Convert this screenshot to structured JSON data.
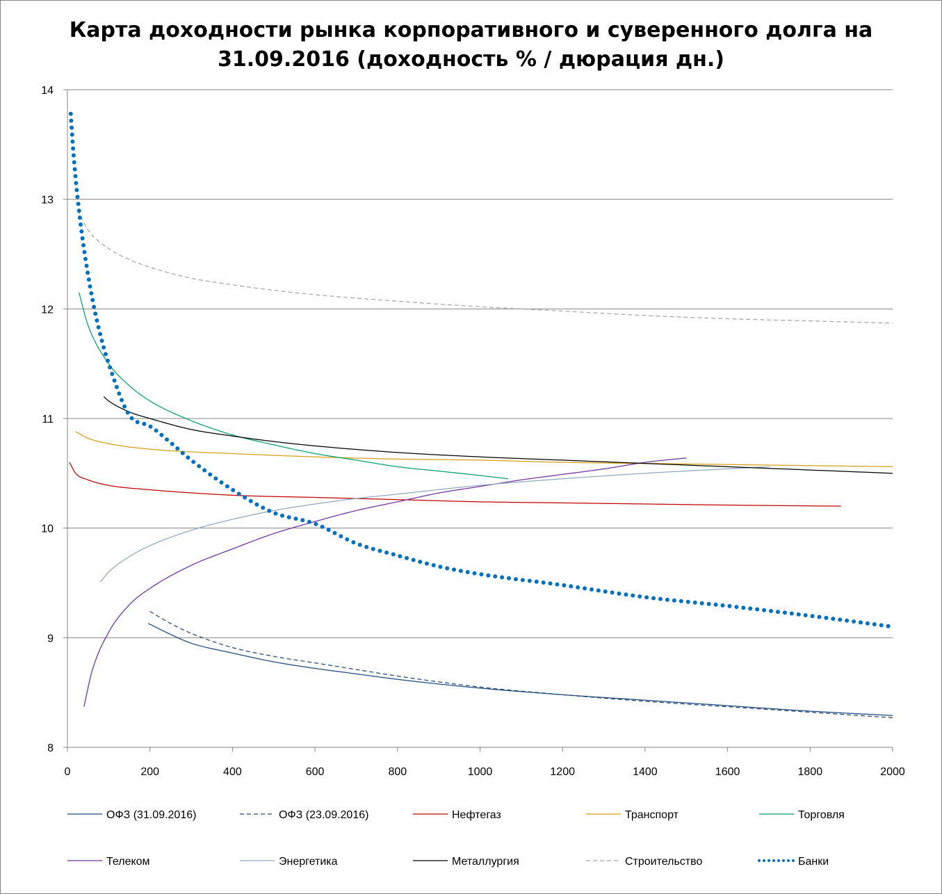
{
  "chart_data": {
    "type": "line",
    "title_line1": "Карта доходности рынка корпоративного и суверенного долга на",
    "title_line2": "31.09.2016 (доходность % / дюрация дн.)",
    "xlabel": "",
    "ylabel": "",
    "xlim": [
      0,
      2000
    ],
    "ylim": [
      8,
      14
    ],
    "x_ticks": [
      "0",
      "200",
      "400",
      "600",
      "800",
      "1000",
      "1200",
      "1400",
      "1600",
      "1800",
      "2000"
    ],
    "y_ticks": [
      "8",
      "9",
      "10",
      "11",
      "12",
      "13",
      "14"
    ],
    "grid": "horizontal",
    "legend_position": "bottom",
    "series": [
      {
        "name": "ОФЗ (31.09.2016)",
        "color": "#1F497D",
        "dash": "solid",
        "x": [
          196,
          250,
          300,
          400,
          500,
          600,
          700,
          800,
          1000,
          1200,
          1400,
          1600,
          1800,
          2000
        ],
        "y": [
          9.13,
          9.03,
          8.95,
          8.86,
          8.78,
          8.72,
          8.67,
          8.62,
          8.54,
          8.48,
          8.43,
          8.38,
          8.33,
          8.29
        ]
      },
      {
        "name": "ОФЗ (23.09.2016)",
        "color": "#1F497D",
        "dash": "dashed",
        "x": [
          200,
          250,
          300,
          400,
          500,
          600,
          700,
          800,
          1000,
          1200,
          1400,
          1600,
          1800,
          2000
        ],
        "y": [
          9.24,
          9.13,
          9.04,
          8.91,
          8.83,
          8.77,
          8.71,
          8.65,
          8.55,
          8.48,
          8.42,
          8.37,
          8.32,
          8.27
        ]
      },
      {
        "name": "Нефтегаз",
        "color": "#C00000",
        "dash": "solid",
        "x": [
          5,
          20,
          50,
          100,
          200,
          400,
          600,
          800,
          1000,
          1200,
          1400,
          1600,
          1875
        ],
        "y": [
          10.6,
          10.5,
          10.44,
          10.39,
          10.35,
          10.3,
          10.28,
          10.26,
          10.24,
          10.23,
          10.22,
          10.21,
          10.2
        ]
      },
      {
        "name": "Транспорт",
        "color": "#D4A017",
        "dash": "solid",
        "x": [
          20,
          50,
          100,
          200,
          400,
          600,
          800,
          1000,
          1200,
          1400,
          1600,
          1800,
          2000
        ],
        "y": [
          10.88,
          10.82,
          10.77,
          10.72,
          10.68,
          10.65,
          10.63,
          10.62,
          10.6,
          10.59,
          10.58,
          10.57,
          10.56
        ]
      },
      {
        "name": "Торговля",
        "color": "#00A06E",
        "dash": "solid",
        "x": [
          28,
          50,
          100,
          150,
          200,
          300,
          400,
          500,
          600,
          700,
          800,
          900,
          1000,
          1068
        ],
        "y": [
          12.15,
          11.85,
          11.5,
          11.3,
          11.16,
          10.98,
          10.85,
          10.76,
          10.68,
          10.62,
          10.56,
          10.52,
          10.48,
          10.45
        ]
      },
      {
        "name": "Телеком",
        "color": "#7030A0",
        "dash": "solid",
        "x": [
          40,
          60,
          100,
          150,
          200,
          300,
          400,
          500,
          600,
          700,
          800,
          900,
          1000,
          1100,
          1200,
          1300,
          1400,
          1500
        ],
        "y": [
          8.37,
          8.7,
          9.05,
          9.3,
          9.45,
          9.66,
          9.81,
          9.95,
          10.06,
          10.16,
          10.24,
          10.32,
          10.38,
          10.44,
          10.49,
          10.54,
          10.6,
          10.64
        ]
      },
      {
        "name": "Энергетика",
        "color": "#8EA9C1",
        "dash": "solid",
        "x": [
          80,
          100,
          150,
          200,
          300,
          400,
          500,
          600,
          700,
          800,
          1000,
          1200,
          1400,
          1700
        ],
        "y": [
          9.51,
          9.6,
          9.74,
          9.84,
          9.98,
          10.08,
          10.16,
          10.22,
          10.27,
          10.31,
          10.39,
          10.45,
          10.5,
          10.56
        ]
      },
      {
        "name": "Металлургия",
        "color": "#000000",
        "dash": "solid",
        "x": [
          88,
          100,
          150,
          200,
          300,
          400,
          500,
          600,
          800,
          1000,
          1200,
          1400,
          1600,
          1800,
          2000
        ],
        "y": [
          11.2,
          11.16,
          11.06,
          11.0,
          10.9,
          10.84,
          10.79,
          10.75,
          10.69,
          10.65,
          10.62,
          10.59,
          10.56,
          10.53,
          10.5
        ]
      },
      {
        "name": "Строительство",
        "color": "#A6A6A6",
        "dash": "dashed",
        "x": [
          25,
          50,
          100,
          150,
          200,
          300,
          400,
          500,
          600,
          800,
          1000,
          1200,
          1400,
          1600,
          1800,
          2000
        ],
        "y": [
          12.9,
          12.72,
          12.55,
          12.45,
          12.38,
          12.28,
          12.22,
          12.17,
          12.13,
          12.07,
          12.02,
          11.98,
          11.94,
          11.91,
          11.89,
          11.87
        ]
      },
      {
        "name": "Банки",
        "color": "#0070C0",
        "dash": "dotted",
        "x": [
          8,
          15,
          25,
          40,
          60,
          80,
          100,
          150,
          200,
          250,
          300,
          400,
          500,
          600,
          700,
          800,
          900,
          1000,
          1200,
          1400,
          1600,
          1800,
          2000
        ],
        "y": [
          13.78,
          13.4,
          13.0,
          12.55,
          12.1,
          11.76,
          11.5,
          11.03,
          10.93,
          10.78,
          10.62,
          10.35,
          10.14,
          10.04,
          9.86,
          9.75,
          9.65,
          9.58,
          9.48,
          9.37,
          9.29,
          9.2,
          9.1
        ]
      }
    ]
  }
}
